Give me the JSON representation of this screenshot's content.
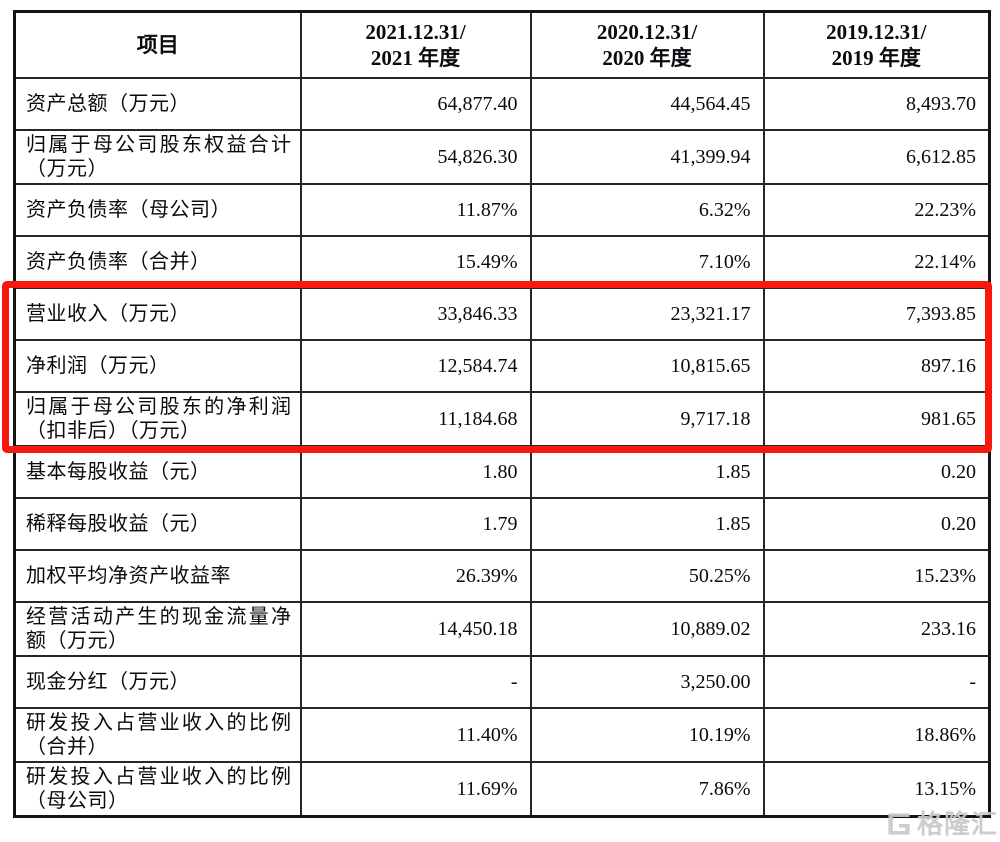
{
  "page": {
    "background": "#ffffff"
  },
  "colors": {
    "highlight_red": "#f7190d",
    "table_border": "#1a1a1a",
    "watermark_gray": "#c9c9c9"
  },
  "watermark": {
    "logo_icon": "gelonghui-g-icon",
    "text": "格隆汇"
  },
  "table": {
    "headers": [
      {
        "line1": "项目",
        "line2": ""
      },
      {
        "line1": "2021.12.31/",
        "line2": "2021 年度"
      },
      {
        "line1": "2020.12.31/",
        "line2": "2020 年度"
      },
      {
        "line1": "2019.12.31/",
        "line2": "2019 年度"
      }
    ],
    "rows": [
      {
        "label": "资产总额（万元）",
        "values": [
          "64,877.40",
          "44,564.45",
          "8,493.70"
        ],
        "highlighted": false
      },
      {
        "label": "归属于母公司股东权益合计（万元）",
        "values": [
          "54,826.30",
          "41,399.94",
          "6,612.85"
        ],
        "highlighted": false
      },
      {
        "label": "资产负债率（母公司）",
        "values": [
          "11.87%",
          "6.32%",
          "22.23%"
        ],
        "highlighted": false
      },
      {
        "label": "资产负债率（合并）",
        "values": [
          "15.49%",
          "7.10%",
          "22.14%"
        ],
        "highlighted": false
      },
      {
        "label": "营业收入（万元）",
        "values": [
          "33,846.33",
          "23,321.17",
          "7,393.85"
        ],
        "highlighted": true
      },
      {
        "label": "净利润（万元）",
        "values": [
          "12,584.74",
          "10,815.65",
          "897.16"
        ],
        "highlighted": true
      },
      {
        "label": "归属于母公司股东的净利润（扣非后）（万元）",
        "values": [
          "11,184.68",
          "9,717.18",
          "981.65"
        ],
        "highlighted": true
      },
      {
        "label": "基本每股收益（元）",
        "values": [
          "1.80",
          "1.85",
          "0.20"
        ],
        "highlighted": false
      },
      {
        "label": "稀释每股收益（元）",
        "values": [
          "1.79",
          "1.85",
          "0.20"
        ],
        "highlighted": false
      },
      {
        "label": "加权平均净资产收益率",
        "values": [
          "26.39%",
          "50.25%",
          "15.23%"
        ],
        "highlighted": false
      },
      {
        "label": "经营活动产生的现金流量净额（万元）",
        "values": [
          "14,450.18",
          "10,889.02",
          "233.16"
        ],
        "highlighted": false
      },
      {
        "label": "现金分红（万元）",
        "values": [
          "-",
          "3,250.00",
          "-"
        ],
        "highlighted": false
      },
      {
        "label": "研发投入占营业收入的比例（合并）",
        "values": [
          "11.40%",
          "10.19%",
          "18.86%"
        ],
        "highlighted": false
      },
      {
        "label": "研发投入占营业收入的比例（母公司）",
        "values": [
          "11.69%",
          "7.86%",
          "13.15%"
        ],
        "highlighted": false
      }
    ]
  }
}
